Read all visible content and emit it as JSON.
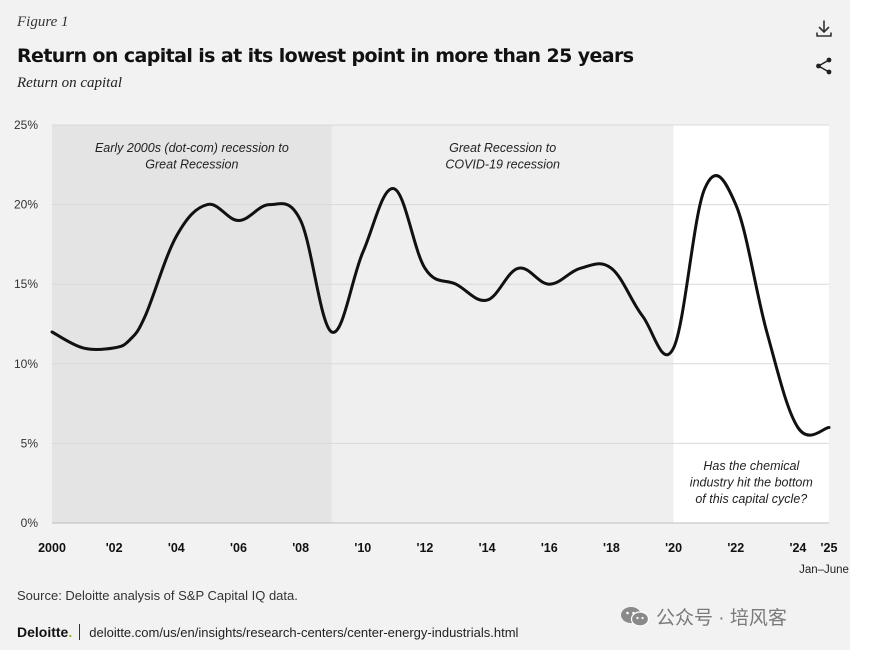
{
  "header": {
    "figure_label": "Figure 1",
    "title": "Return on capital is at its lowest point in more than 25 years",
    "subtitle": "Return on capital"
  },
  "icons": {
    "download": "download-icon",
    "share": "share-icon",
    "wechat": "wechat-icon"
  },
  "colors": {
    "line": "#111111",
    "band_dark": "#e4e4e4",
    "band_light": "#efefef",
    "band_white": "#ffffff",
    "grid": "#d9d9d9",
    "accent": "#86bc25"
  },
  "chart_data": {
    "type": "line",
    "title": "Return on capital is at its lowest point in more than 25 years",
    "ylabel": "Return on capital",
    "xlabel": "",
    "ylim": [
      0,
      25
    ],
    "xlim": [
      2000,
      2025
    ],
    "yticks": [
      {
        "value": 0,
        "label": "0%"
      },
      {
        "value": 5,
        "label": "5%"
      },
      {
        "value": 10,
        "label": "10%"
      },
      {
        "value": 15,
        "label": "15%"
      },
      {
        "value": 20,
        "label": "20%"
      },
      {
        "value": 25,
        "label": "25%"
      }
    ],
    "xticks": [
      {
        "value": 2000,
        "label": "2000"
      },
      {
        "value": 2002,
        "label": "'02"
      },
      {
        "value": 2004,
        "label": "'04"
      },
      {
        "value": 2006,
        "label": "'06"
      },
      {
        "value": 2008,
        "label": "'08"
      },
      {
        "value": 2010,
        "label": "'10"
      },
      {
        "value": 2012,
        "label": "'12"
      },
      {
        "value": 2014,
        "label": "'14"
      },
      {
        "value": 2016,
        "label": "'16"
      },
      {
        "value": 2018,
        "label": "'18"
      },
      {
        "value": 2020,
        "label": "'20"
      },
      {
        "value": 2022,
        "label": "'22"
      },
      {
        "value": 2024,
        "label": "'24"
      },
      {
        "value": 2025,
        "label": "'25",
        "sublabel": "Jan–June"
      }
    ],
    "grid": true,
    "series": [
      {
        "name": "Return on capital",
        "x": [
          2000,
          2001,
          2002,
          2002.5,
          2003,
          2004,
          2005,
          2006,
          2007,
          2008,
          2009,
          2010,
          2011,
          2012,
          2013,
          2014,
          2015,
          2016,
          2017,
          2018,
          2019,
          2020,
          2021,
          2022,
          2023,
          2024,
          2025
        ],
        "values": [
          12,
          11,
          11,
          11.5,
          13,
          18,
          20,
          19,
          20,
          19,
          12,
          17,
          21,
          16,
          15,
          14,
          16,
          15,
          16,
          16,
          13,
          11,
          21,
          20,
          12,
          6,
          6
        ]
      }
    ],
    "bands": [
      {
        "x0": 2000,
        "x1": 2009,
        "shade": "dark",
        "label_lines": [
          "Early 2000s (dot-com) recession to",
          "Great Recession"
        ]
      },
      {
        "x0": 2009,
        "x1": 2020,
        "shade": "light",
        "label_lines": [
          "Great Recession to",
          "COVID-19 recession"
        ]
      },
      {
        "x0": 2020,
        "x1": 2025,
        "shade": "white",
        "label_lines": [
          "Has the chemical",
          "industry hit the bottom",
          "of this capital cycle?"
        ]
      }
    ]
  },
  "footer": {
    "source": "Source: Deloitte analysis of S&P Capital IQ data.",
    "brand": "Deloitte",
    "brand_dot": ".",
    "url": "deloitte.com/us/en/insights/research-centers/center-energy-industrials.html"
  },
  "watermark": {
    "text": "公众号 · 培风客"
  }
}
